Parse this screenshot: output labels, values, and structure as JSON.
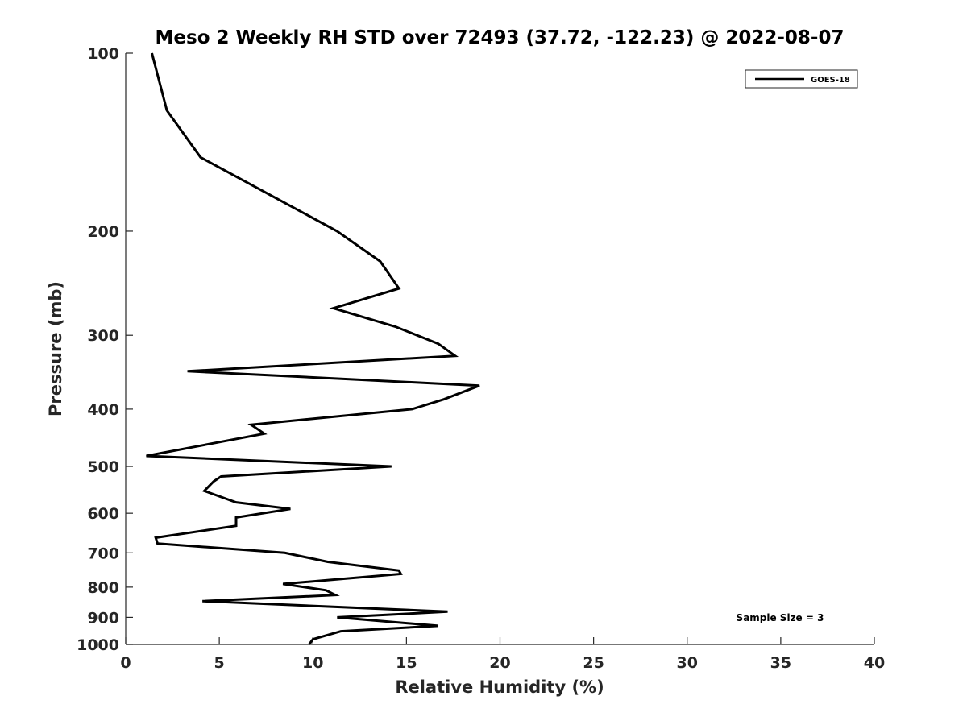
{
  "chart_data": {
    "type": "line",
    "title": "Meso 2 Weekly RH STD over 72493 (37.72, -122.23) @ 2022-08-07",
    "xlabel": "Relative Humidity (%)",
    "ylabel": "Pressure (mb)",
    "xlim": [
      0,
      40
    ],
    "ylim": [
      100,
      1000
    ],
    "y_scale": "log",
    "y_direction": "reversed",
    "grid": false,
    "x_ticks": [
      0,
      5,
      10,
      15,
      20,
      25,
      30,
      35,
      40
    ],
    "y_ticks": [
      100,
      200,
      300,
      400,
      500,
      600,
      700,
      800,
      900,
      1000
    ],
    "legend_position": "top-right",
    "annotation": "Sample Size = 3",
    "series": [
      {
        "name": "GOES-18",
        "color": "#000000",
        "x": [
          1.4,
          2.2,
          4.0,
          11.3,
          13.6,
          14.6,
          11.1,
          14.4,
          16.7,
          17.6,
          3.3,
          18.9,
          17.0,
          15.3,
          6.7,
          7.4,
          1.1,
          14.2,
          5.1,
          4.7,
          4.2,
          5.9,
          8.8,
          5.9,
          5.9,
          1.6,
          1.7,
          8.5,
          10.8,
          14.6,
          14.7,
          8.4,
          10.7,
          11.2,
          4.1,
          17.2,
          11.3,
          16.7,
          11.5,
          10.0,
          9.8
        ],
        "y": [
          100,
          125,
          150,
          200,
          225,
          250,
          270,
          290,
          310,
          325,
          345,
          365,
          385,
          400,
          425,
          440,
          480,
          500,
          520,
          530,
          550,
          575,
          590,
          610,
          630,
          660,
          675,
          700,
          725,
          750,
          760,
          790,
          810,
          825,
          845,
          880,
          900,
          930,
          950,
          980,
          1000
        ]
      }
    ]
  }
}
